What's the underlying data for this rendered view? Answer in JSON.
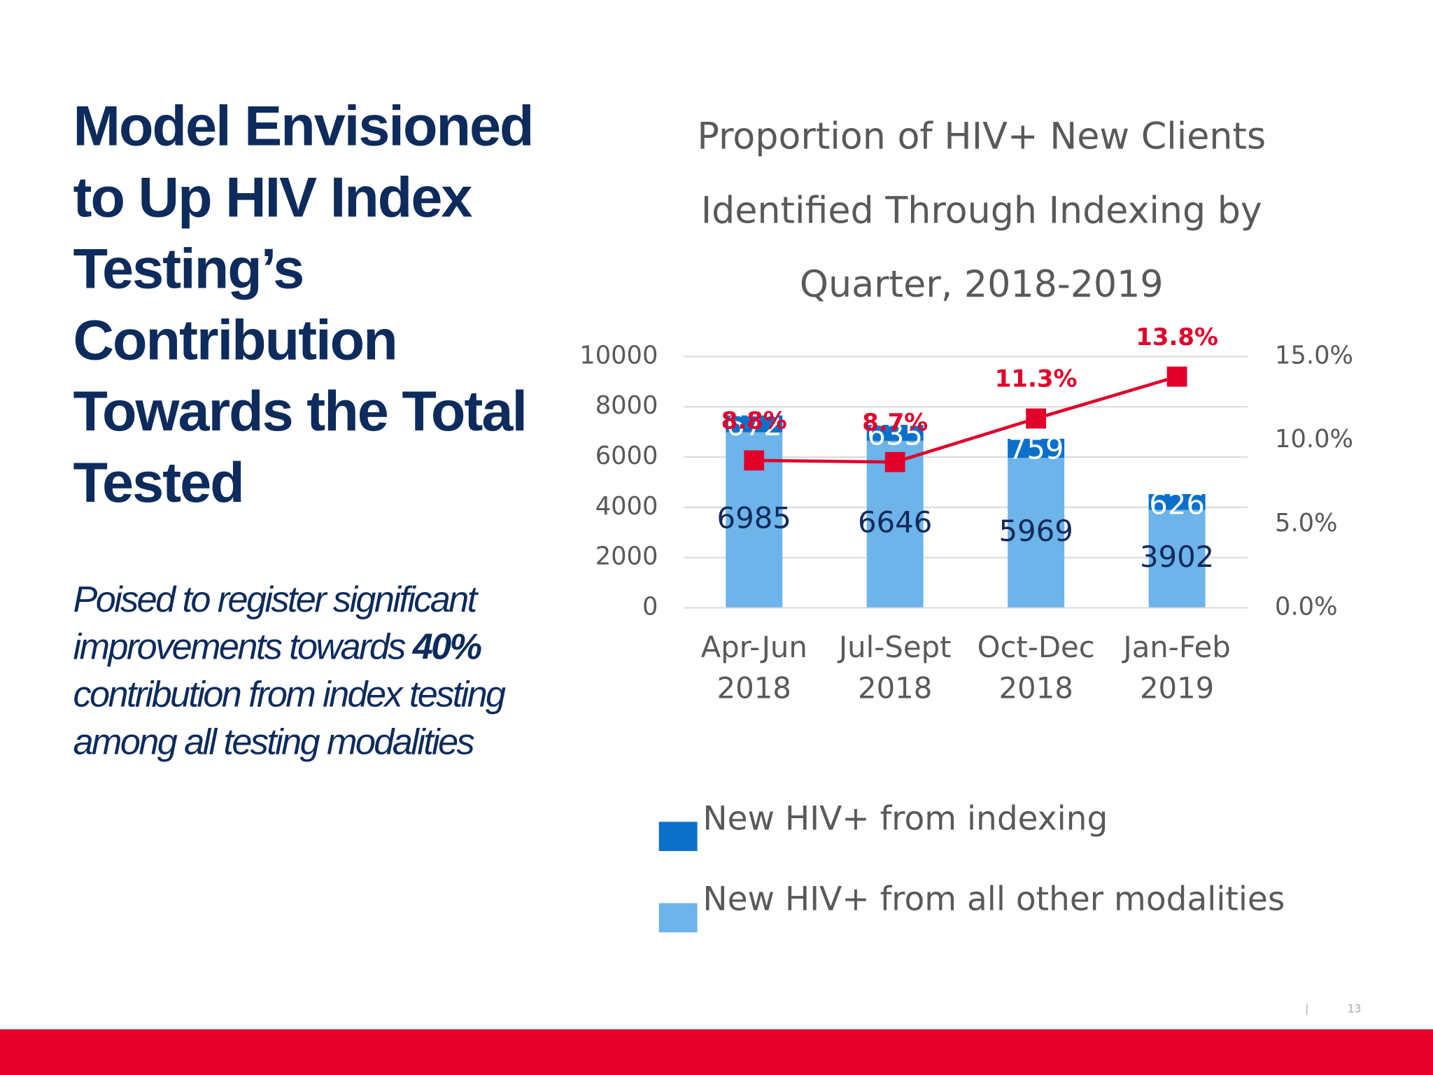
{
  "slide": {
    "title_lines": [
      "Model Envisioned",
      "to Up HIV Index",
      "Testing’s",
      "Contribution",
      "Towards the Total",
      "Tested"
    ],
    "body": {
      "before": "Poised to register significant improvements towards ",
      "bold": "40%",
      "after": " contribution from index testing  among all testing modalities"
    },
    "separator": "|",
    "page_number": "13"
  },
  "chart_data": {
    "type": "bar",
    "stacked": true,
    "title": [
      "Proportion of HIV+ New Clients",
      "Identified Through Indexing by",
      "Quarter, 2018-2019"
    ],
    "categories": [
      [
        "Apr-Jun",
        "2018"
      ],
      [
        "Jul-Sept",
        "2018"
      ],
      [
        "Oct-Dec",
        "2018"
      ],
      [
        "Jan-Feb",
        "2019"
      ]
    ],
    "series": [
      {
        "name": "New HIV+ from indexing",
        "color": "#0b70c9",
        "label_color": "#ffffff",
        "values": [
          672,
          635,
          759,
          626
        ]
      },
      {
        "name": "New HIV+ from all other modalities",
        "color": "#6cb4e9",
        "label_color": "#12295c",
        "values": [
          6985,
          6646,
          5969,
          3902
        ]
      },
      {
        "type": "line",
        "axis": "y2",
        "color": "#e0002a",
        "values": [
          8.8,
          8.7,
          11.3,
          13.8
        ],
        "value_labels": [
          "8.8%",
          "8.7%",
          "11.3%",
          "13.8%"
        ]
      }
    ],
    "ylim": [
      0,
      10000
    ],
    "yticks": [
      0,
      2000,
      4000,
      6000,
      8000,
      10000
    ],
    "y2lim": [
      0,
      15
    ],
    "y2ticks": [
      {
        "value": 0,
        "label": "0.0%"
      },
      {
        "value": 5,
        "label": "5.0%"
      },
      {
        "value": 10,
        "label": "10.0%"
      },
      {
        "value": 15,
        "label": "15.0%"
      }
    ],
    "grid": true
  }
}
